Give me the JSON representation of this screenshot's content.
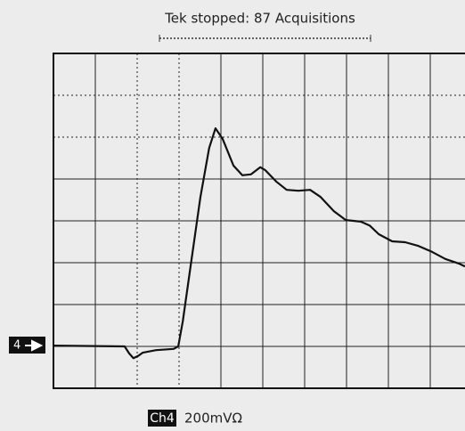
{
  "chart_data": {
    "type": "line",
    "title": "Tek stopped: 87 Acquisitions",
    "channel_marker": "4",
    "channel_label": "Ch4",
    "scale_label": "200mVΩ",
    "color": "#111111",
    "xlim": [
      0,
      10
    ],
    "ylim": [
      0,
      8
    ],
    "x": [
      0,
      1.7,
      1.81,
      1.91,
      2.02,
      2.13,
      2.45,
      2.87,
      2.98,
      3.09,
      3.3,
      3.51,
      3.72,
      3.87,
      4.04,
      4.3,
      4.51,
      4.72,
      4.94,
      5.06,
      5.32,
      5.57,
      5.85,
      6.13,
      6.38,
      6.7,
      6.98,
      7.34,
      7.55,
      7.77,
      8.09,
      8.4,
      8.72,
      9.04,
      9.36,
      9.68,
      9.83
    ],
    "values": [
      1.02,
      1.0,
      0.83,
      0.72,
      0.77,
      0.85,
      0.91,
      0.94,
      1.0,
      1.6,
      3.09,
      4.57,
      5.74,
      6.21,
      5.96,
      5.32,
      5.09,
      5.11,
      5.28,
      5.21,
      4.94,
      4.74,
      4.72,
      4.74,
      4.57,
      4.23,
      4.02,
      3.98,
      3.89,
      3.68,
      3.51,
      3.49,
      3.4,
      3.26,
      3.09,
      2.98,
      2.91
    ]
  }
}
